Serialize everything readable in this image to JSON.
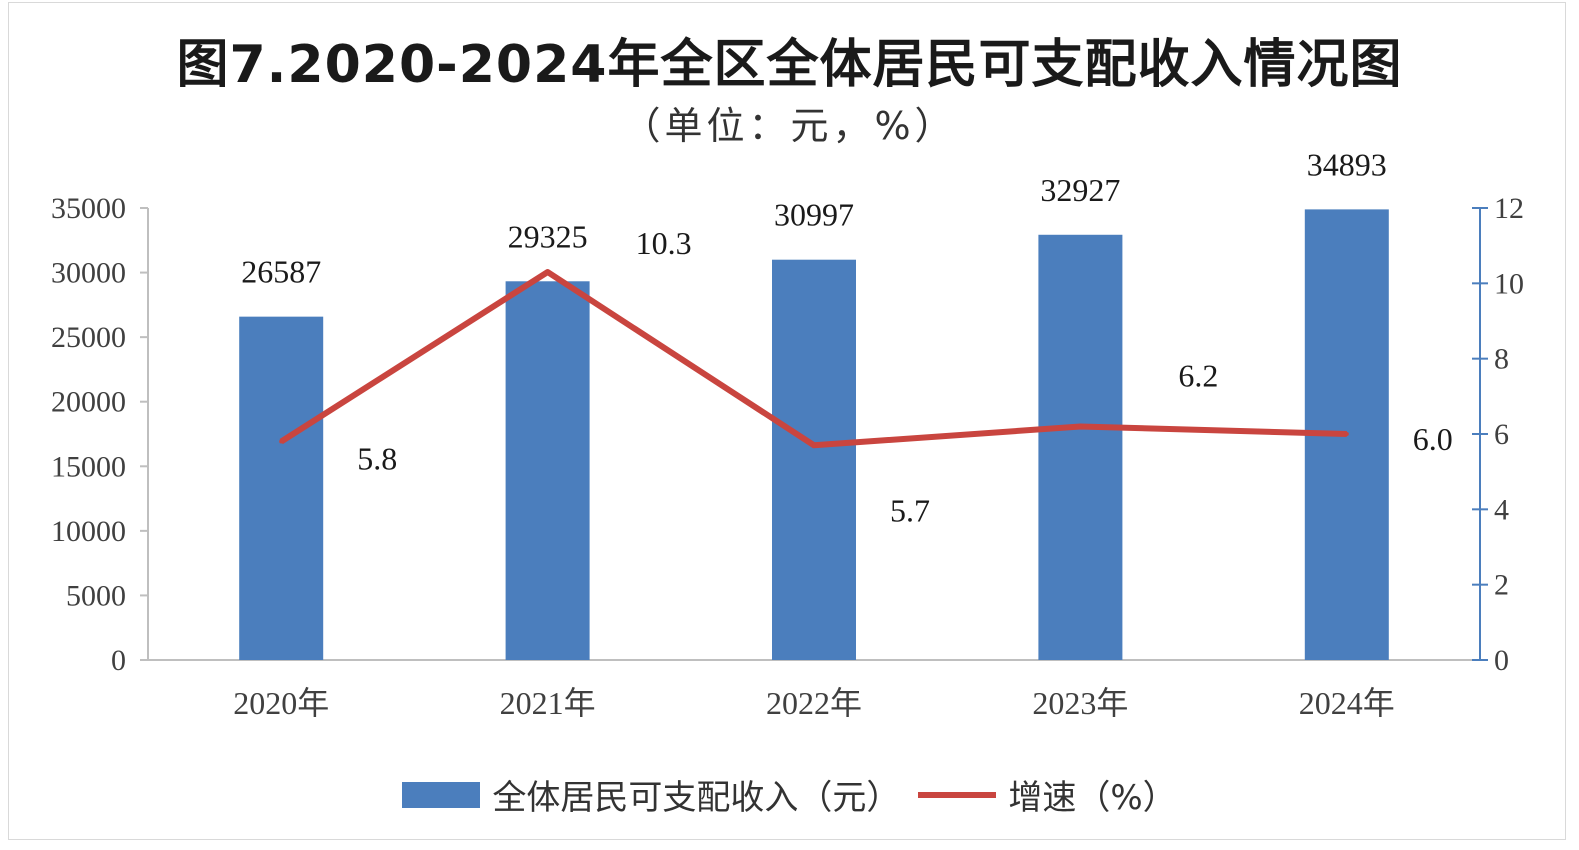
{
  "chart_data": {
    "type": "bar",
    "title": "图7.2020-2024年全区全体居民可支配收入情况图",
    "subtitle": "（单位：元，%）",
    "categories": [
      "2020年",
      "2021年",
      "2022年",
      "2023年",
      "2024年"
    ],
    "series": [
      {
        "name": "全体居民可支配收入（元）",
        "type": "bar",
        "axis": "left",
        "values": [
          26587,
          29325,
          30997,
          32927,
          34893
        ],
        "color": "#4b7ebd"
      },
      {
        "name": "增速（%）",
        "type": "line",
        "axis": "right",
        "values": [
          5.8,
          10.3,
          5.7,
          6.2,
          6.0
        ],
        "labels": [
          "5.8",
          "10.3",
          "5.7",
          "6.2",
          "6.0"
        ],
        "color": "#c9453f"
      }
    ],
    "y_left": {
      "ylim": [
        0,
        35000
      ],
      "ticks": [
        0,
        5000,
        10000,
        15000,
        20000,
        25000,
        30000,
        35000
      ]
    },
    "y_right": {
      "ylim": [
        0,
        12
      ],
      "ticks": [
        0,
        2,
        4,
        6,
        8,
        10,
        12
      ]
    },
    "grid": false,
    "legend_position": "bottom"
  }
}
